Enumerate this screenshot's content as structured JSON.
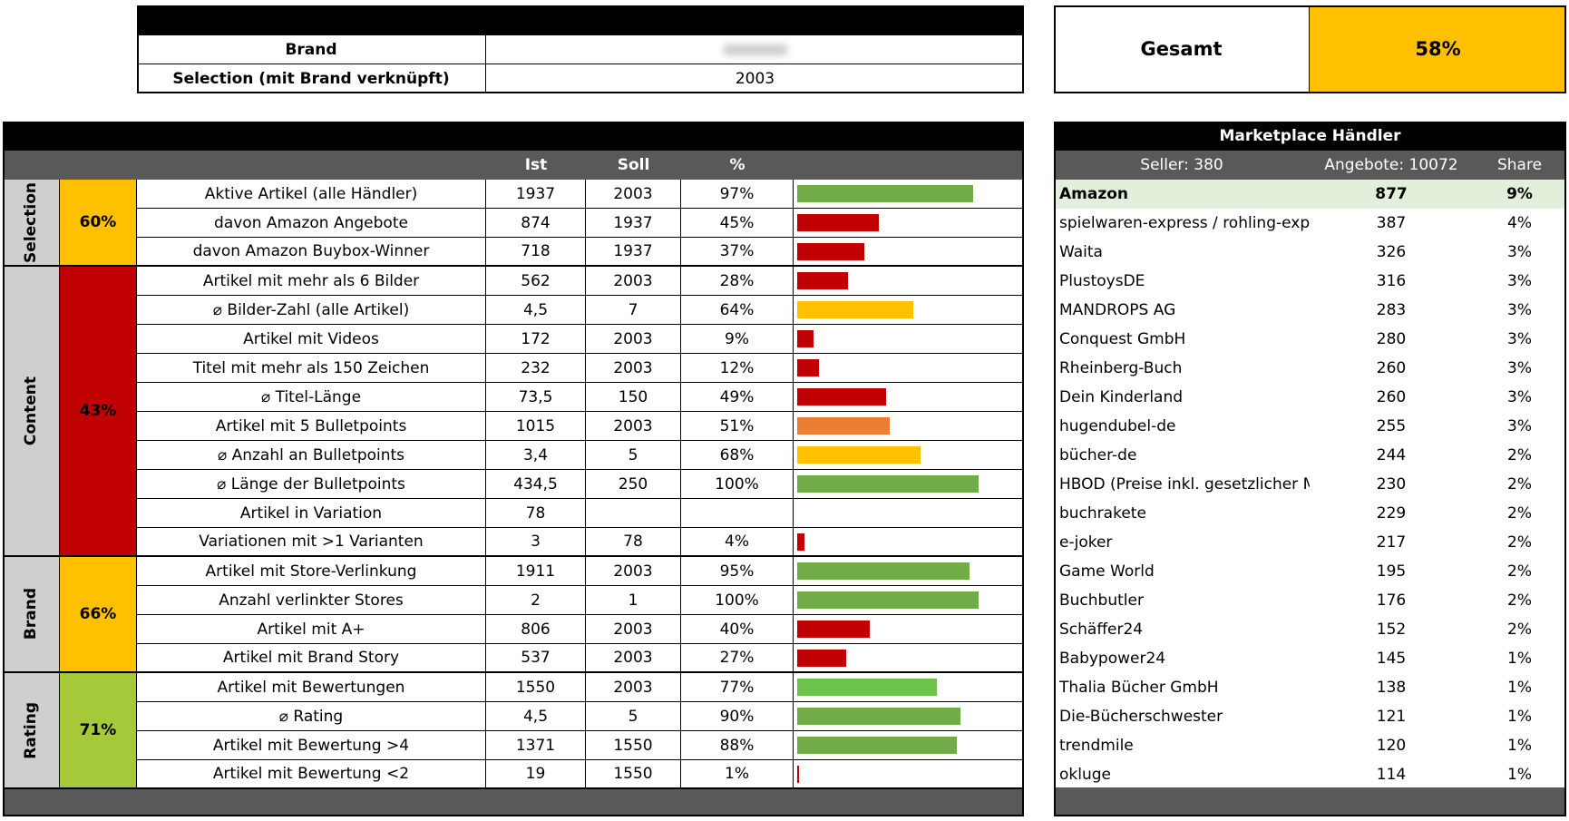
{
  "header": {
    "brand_label": "Brand",
    "selection_label": "Selection (mit Brand verknüpft)",
    "selection_value": "2003"
  },
  "gesamt": {
    "label": "Gesamt",
    "value": "58%"
  },
  "kpi": {
    "columns": [
      "Ist",
      "Soll",
      "%"
    ],
    "sections": [
      {
        "name": "Selection",
        "score": "60%",
        "color": "#ffc000",
        "rows": [
          {
            "label": "Aktive Artikel (alle Händler)",
            "ist": "1937",
            "soll": "2003",
            "pct": 97,
            "pct_label": "97%",
            "bar_color": "#70ad47"
          },
          {
            "label": "davon Amazon Angebote",
            "ist": "874",
            "soll": "1937",
            "pct": 45,
            "pct_label": "45%",
            "bar_color": "#c00000"
          },
          {
            "label": "davon Amazon Buybox-Winner",
            "ist": "718",
            "soll": "1937",
            "pct": 37,
            "pct_label": "37%",
            "bar_color": "#c00000"
          }
        ]
      },
      {
        "name": "Content",
        "score": "43%",
        "color": "#c00000",
        "rows": [
          {
            "label": "Artikel mit mehr als 6 Bilder",
            "ist": "562",
            "soll": "2003",
            "pct": 28,
            "pct_label": "28%",
            "bar_color": "#c00000"
          },
          {
            "label": "⌀ Bilder-Zahl (alle Artikel)",
            "ist": "4,5",
            "soll": "7",
            "pct": 64,
            "pct_label": "64%",
            "bar_color": "#ffc000"
          },
          {
            "label": "Artikel mit Videos",
            "ist": "172",
            "soll": "2003",
            "pct": 9,
            "pct_label": "9%",
            "bar_color": "#c00000"
          },
          {
            "label": "Titel mit mehr als 150 Zeichen",
            "ist": "232",
            "soll": "2003",
            "pct": 12,
            "pct_label": "12%",
            "bar_color": "#c00000"
          },
          {
            "label": "⌀ Titel-Länge",
            "ist": "73,5",
            "soll": "150",
            "pct": 49,
            "pct_label": "49%",
            "bar_color": "#c00000"
          },
          {
            "label": "Artikel mit 5 Bulletpoints",
            "ist": "1015",
            "soll": "2003",
            "pct": 51,
            "pct_label": "51%",
            "bar_color": "#ed7d31"
          },
          {
            "label": "⌀ Anzahl an Bulletpoints",
            "ist": "3,4",
            "soll": "5",
            "pct": 68,
            "pct_label": "68%",
            "bar_color": "#ffc000"
          },
          {
            "label": "⌀ Länge der Bulletpoints",
            "ist": "434,5",
            "soll": "250",
            "pct": 100,
            "pct_label": "100%",
            "bar_color": "#70ad47"
          },
          {
            "label": "Artikel in Variation",
            "ist": "78"
          },
          {
            "label": "Variationen mit >1 Varianten",
            "ist": "3",
            "soll": "78",
            "pct": 4,
            "pct_label": "4%",
            "bar_color": "#c00000"
          }
        ]
      },
      {
        "name": "Brand",
        "score": "66%",
        "color": "#ffc000",
        "rows": [
          {
            "label": "Artikel mit Store-Verlinkung",
            "ist": "1911",
            "soll": "2003",
            "pct": 95,
            "pct_label": "95%",
            "bar_color": "#70ad47"
          },
          {
            "label": "Anzahl verlinkter Stores",
            "ist": "2",
            "soll": "1",
            "pct": 100,
            "pct_label": "100%",
            "bar_color": "#70ad47"
          },
          {
            "label": "Artikel mit A+",
            "ist": "806",
            "soll": "2003",
            "pct": 40,
            "pct_label": "40%",
            "bar_color": "#c00000"
          },
          {
            "label": "Artikel mit Brand Story",
            "ist": "537",
            "soll": "2003",
            "pct": 27,
            "pct_label": "27%",
            "bar_color": "#c00000"
          }
        ]
      },
      {
        "name": "Rating",
        "score": "71%",
        "color": "#a5c939",
        "rows": [
          {
            "label": "Artikel mit Bewertungen",
            "ist": "1550",
            "soll": "2003",
            "pct": 77,
            "pct_label": "77%",
            "bar_color": "#6cc24a"
          },
          {
            "label": "⌀ Rating",
            "ist": "4,5",
            "soll": "5",
            "pct": 90,
            "pct_label": "90%",
            "bar_color": "#70ad47"
          },
          {
            "label": "Artikel mit Bewertung >4",
            "ist": "1371",
            "soll": "1550",
            "pct": 88,
            "pct_label": "88%",
            "bar_color": "#70ad47"
          },
          {
            "label": "Artikel mit Bewertung <2",
            "ist": "19",
            "soll": "1550",
            "pct": 1,
            "pct_label": "1%",
            "bar_color": "#c00000"
          }
        ]
      }
    ]
  },
  "sellers": {
    "title": "Marketplace Händler",
    "seller_count": "Seller: 380",
    "offers": "Angebote: 10072",
    "share": "Share",
    "rows": [
      {
        "name": "Amazon",
        "offers": "877",
        "share": "9%"
      },
      {
        "name": "spielwaren-express / rohling-expr",
        "offers": "387",
        "share": "4%"
      },
      {
        "name": "Waita",
        "offers": "326",
        "share": "3%"
      },
      {
        "name": "PlustoysDE",
        "offers": "316",
        "share": "3%"
      },
      {
        "name": "MANDROPS AG",
        "offers": "283",
        "share": "3%"
      },
      {
        "name": "Conquest GmbH",
        "offers": "280",
        "share": "3%"
      },
      {
        "name": "Rheinberg-Buch",
        "offers": "260",
        "share": "3%"
      },
      {
        "name": "Dein Kinderland",
        "offers": "260",
        "share": "3%"
      },
      {
        "name": "hugendubel-de",
        "offers": "255",
        "share": "3%"
      },
      {
        "name": "bücher-de",
        "offers": "244",
        "share": "2%"
      },
      {
        "name": "HBOD (Preise inkl. gesetzlicher M",
        "offers": "230",
        "share": "2%"
      },
      {
        "name": "buchrakete",
        "offers": "229",
        "share": "2%"
      },
      {
        "name": "e-joker",
        "offers": "217",
        "share": "2%"
      },
      {
        "name": "Game World",
        "offers": "195",
        "share": "2%"
      },
      {
        "name": "Buchbutler",
        "offers": "176",
        "share": "2%"
      },
      {
        "name": "Schäffer24",
        "offers": "152",
        "share": "2%"
      },
      {
        "name": "Babypower24",
        "offers": "145",
        "share": "1%"
      },
      {
        "name": "Thalia Bücher GmbH",
        "offers": "138",
        "share": "1%"
      },
      {
        "name": "Die-Bücherschwester",
        "offers": "121",
        "share": "1%"
      },
      {
        "name": "trendmile",
        "offers": "120",
        "share": "1%"
      },
      {
        "name": "okluge",
        "offers": "114",
        "share": "1%"
      }
    ]
  }
}
